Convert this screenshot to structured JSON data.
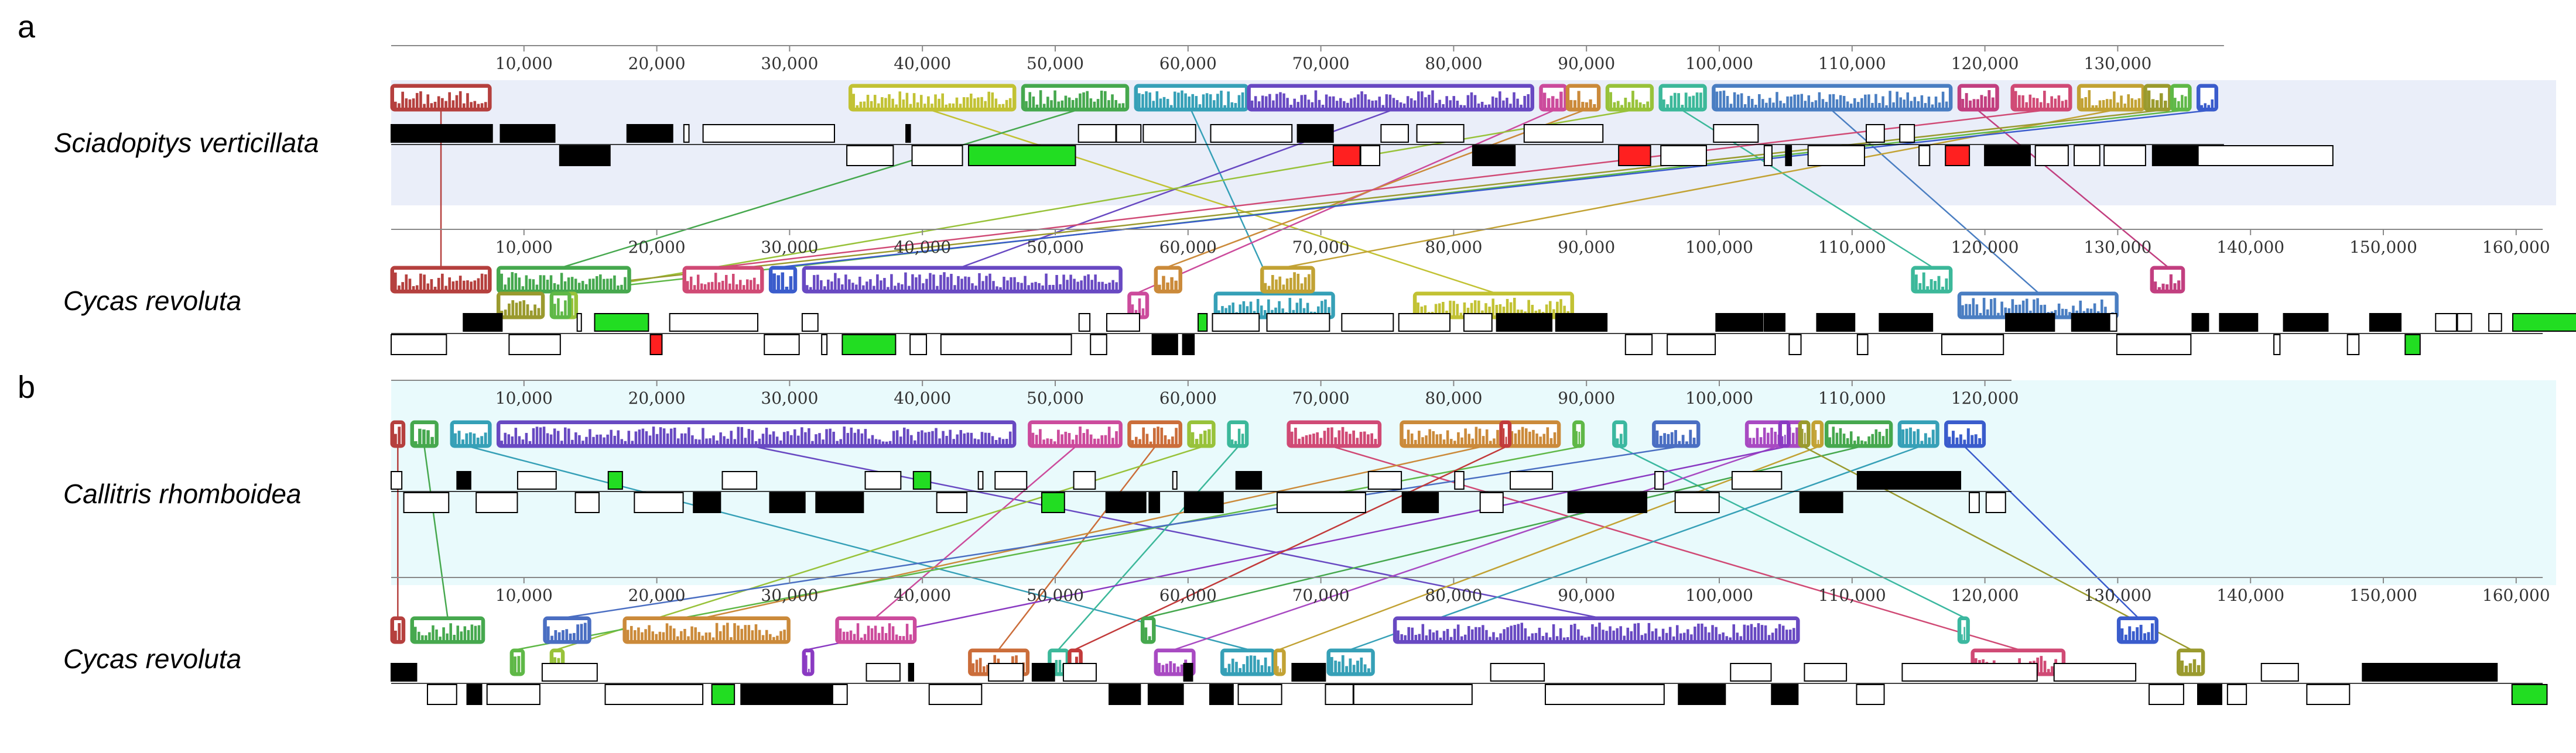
{
  "panels": [
    {
      "letter": "a",
      "bg": "#eaeef9",
      "genomes": [
        {
          "name": "Sciadopitys verticillata",
          "length": 138000,
          "ticks": [
            10000,
            20000,
            30000,
            40000,
            50000,
            60000,
            70000,
            80000,
            90000,
            100000,
            110000,
            120000,
            130000
          ],
          "tick_labels": [
            "10,000",
            "20,000",
            "30,000",
            "40,000",
            "50,000",
            "60,000",
            "70,000",
            "80,000",
            "90,000",
            "100,000",
            "110,000",
            "120,000",
            "130,000"
          ]
        },
        {
          "name": "Cycas revoluta",
          "length": 162000,
          "ticks": [
            10000,
            20000,
            30000,
            40000,
            50000,
            60000,
            70000,
            80000,
            90000,
            100000,
            110000,
            120000,
            130000,
            140000,
            150000,
            160000
          ],
          "tick_labels": [
            "10,000",
            "20,000",
            "30,000",
            "40,000",
            "50,000",
            "60,000",
            "70,000",
            "80,000",
            "90,000",
            "100,000",
            "110,000",
            "120,000",
            "130,000",
            "140,000",
            "150,000",
            "160,000"
          ]
        }
      ],
      "lcbs": [
        {
          "color": "#b5403e",
          "top": [
            0,
            7500
          ],
          "bottom": [
            0,
            7500
          ],
          "bottom_row": 0
        },
        {
          "color": "#c2c234",
          "top": [
            34500,
            47000
          ],
          "bottom": [
            77000,
            89000
          ],
          "bottom_row": 1
        },
        {
          "color": "#46a84e",
          "top": [
            47500,
            55500
          ],
          "bottom": [
            8000,
            18000
          ],
          "bottom_row": 0
        },
        {
          "color": "#36a0b7",
          "top": [
            56000,
            64500
          ],
          "bottom": [
            62000,
            71000
          ],
          "bottom_row": 1
        },
        {
          "color": "#6849c2",
          "top": [
            64500,
            86000
          ],
          "bottom": [
            31000,
            55000
          ],
          "bottom_row": 0
        },
        {
          "color": "#cc4b9c",
          "top": [
            86500,
            88500
          ],
          "bottom": [
            55500,
            57000
          ],
          "bottom_row": 1
        },
        {
          "color": "#cb8a3a",
          "top": [
            88500,
            91000
          ],
          "bottom": [
            57500,
            59500
          ],
          "bottom_row": 0
        },
        {
          "color": "#98c23a",
          "top": [
            91500,
            95000
          ],
          "bottom": [
            12500,
            14000
          ],
          "bottom_row": 1
        },
        {
          "color": "#3cb89a",
          "top": [
            95500,
            99000
          ],
          "bottom": [
            114500,
            117500
          ],
          "bottom_row": 0
        },
        {
          "color": "#4a7ec2",
          "top": [
            99500,
            117500
          ],
          "bottom": [
            118000,
            130000
          ],
          "bottom_row": 1
        },
        {
          "color": "#c23f80",
          "top": [
            118000,
            121000
          ],
          "bottom": [
            132500,
            135000
          ],
          "bottom_row": 0
        },
        {
          "color": "#d04a75",
          "top": [
            122000,
            126500
          ],
          "bottom": [
            22000,
            28000
          ],
          "bottom_row": 0
        },
        {
          "color": "#c2a234",
          "top": [
            127000,
            132000
          ],
          "bottom": [
            65500,
            69500
          ],
          "bottom_row": 0
        },
        {
          "color": "#9a9a2e",
          "top": [
            132000,
            134000
          ],
          "bottom": [
            8000,
            11500
          ],
          "bottom_row": 1
        },
        {
          "color": "#5fb847",
          "top": [
            134000,
            135500
          ],
          "bottom": [
            12000,
            13500
          ],
          "bottom_row": 1
        },
        {
          "color": "#3a5ccc",
          "top": [
            136000,
            137500
          ],
          "bottom": [
            28500,
            30500
          ],
          "bottom_row": 0
        }
      ]
    },
    {
      "letter": "b",
      "bg": "#e9fafc",
      "genomes": [
        {
          "name": "Callitris rhomboidea",
          "length": 122000,
          "ticks": [
            10000,
            20000,
            30000,
            40000,
            50000,
            60000,
            70000,
            80000,
            90000,
            100000,
            110000,
            120000
          ],
          "tick_labels": [
            "10,000",
            "20,000",
            "30,000",
            "40,000",
            "50,000",
            "60,000",
            "70,000",
            "80,000",
            "90,000",
            "100,000",
            "110,000",
            "120,000"
          ]
        },
        {
          "name": "Cycas revoluta",
          "length": 162000,
          "ticks": [
            10000,
            20000,
            30000,
            40000,
            50000,
            60000,
            70000,
            80000,
            90000,
            100000,
            110000,
            120000,
            130000,
            140000,
            150000,
            160000
          ],
          "tick_labels": [
            "10,000",
            "20,000",
            "30,000",
            "40,000",
            "50,000",
            "60,000",
            "70,000",
            "80,000",
            "90,000",
            "100,000",
            "110,000",
            "120,000",
            "130,000",
            "140,000",
            "150,000",
            "160,000"
          ]
        }
      ],
      "lcbs": [
        {
          "color": "#b5403e",
          "top": [
            0,
            1000
          ],
          "bottom": [
            0,
            1000
          ],
          "bottom_row": 0
        },
        {
          "color": "#46a84e",
          "top": [
            1500,
            3500
          ],
          "bottom": [
            1500,
            7000
          ],
          "bottom_row": 0
        },
        {
          "color": "#36a0b7",
          "top": [
            4500,
            7500
          ],
          "bottom": [
            62500,
            66500
          ],
          "bottom_row": 1
        },
        {
          "color": "#6849c2",
          "top": [
            8000,
            47000
          ],
          "bottom": [
            75500,
            106000
          ],
          "bottom_row": 0
        },
        {
          "color": "#cc4b9c",
          "top": [
            48000,
            55000
          ],
          "bottom": [
            33500,
            39500
          ],
          "bottom_row": 0
        },
        {
          "color": "#cb6d3a",
          "top": [
            55500,
            59500
          ],
          "bottom": [
            43500,
            48000
          ],
          "bottom_row": 1
        },
        {
          "color": "#98c23a",
          "top": [
            60000,
            62000
          ],
          "bottom": [
            12000,
            13000
          ],
          "bottom_row": 1
        },
        {
          "color": "#3cb89a",
          "top": [
            63000,
            64500
          ],
          "bottom": [
            49500,
            51000
          ],
          "bottom_row": 1
        },
        {
          "color": "#d04a75",
          "top": [
            67500,
            74500
          ],
          "bottom": [
            119000,
            126000
          ],
          "bottom_row": 1
        },
        {
          "color": "#cb8a3a",
          "top": [
            76000,
            88000
          ],
          "bottom": [
            17500,
            30000
          ],
          "bottom_row": 0
        },
        {
          "color": "#5fb847",
          "top": [
            89000,
            89800
          ],
          "bottom": [
            9000,
            10000
          ],
          "bottom_row": 1
        },
        {
          "color": "#3cb8a0",
          "top": [
            92000,
            93000
          ],
          "bottom": [
            118000,
            118800
          ],
          "bottom_row": 0
        },
        {
          "color": "#4a6ec2",
          "top": [
            95000,
            98500
          ],
          "bottom": [
            11500,
            15000
          ],
          "bottom_row": 0
        },
        {
          "color": "#a84ac2",
          "top": [
            102000,
            106500
          ],
          "bottom": [
            57500,
            60500
          ],
          "bottom_row": 1
        },
        {
          "color": "#c2a234",
          "top": [
            107000,
            107500
          ],
          "bottom": [
            66500,
            67000
          ],
          "bottom_row": 1
        },
        {
          "color": "#46a84e",
          "top": [
            108000,
            113000
          ],
          "bottom": [
            56500,
            57500
          ],
          "bottom_row": 0
        },
        {
          "color": "#36a0b7",
          "top": [
            113500,
            116500
          ],
          "bottom": [
            70500,
            74000
          ],
          "bottom_row": 1
        },
        {
          "color": "#3a5ccc",
          "top": [
            117000,
            120000
          ],
          "bottom": [
            130000,
            133000
          ],
          "bottom_row": 0
        },
        {
          "color": "#9a9a2e",
          "top": [
            106000,
            106600
          ],
          "bottom": [
            134500,
            136500
          ],
          "bottom_row": 1
        },
        {
          "color": "#8a3ac2",
          "top": [
            104500,
            105000
          ],
          "bottom": [
            31000,
            31500
          ],
          "bottom_row": 1
        },
        {
          "color": "#c23a3a",
          "top": [
            83500,
            84200
          ],
          "bottom": [
            51000,
            52000
          ],
          "bottom_row": 1
        }
      ]
    }
  ],
  "gene_colors": {
    "gene": "#000000",
    "rRNA": "#ff2020",
    "tRNA": "#22dd22"
  }
}
